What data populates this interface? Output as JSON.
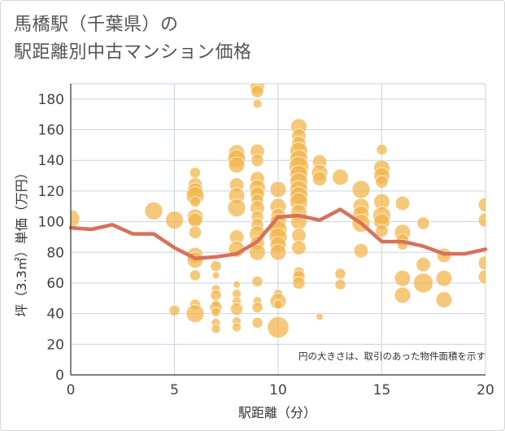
{
  "title_line1": "馬橋駅（千葉県）の",
  "title_line2": "駅距離別中古マンション価格",
  "chart_data": {
    "type": "scatter",
    "xlabel": "駅距離（分）",
    "ylabel": "坪（3.3㎡）単価（万円）",
    "xlim": [
      0,
      20
    ],
    "ylim": [
      0,
      190
    ],
    "x_ticks": [
      0,
      5,
      10,
      15,
      20
    ],
    "y_ticks": [
      0,
      20,
      40,
      60,
      80,
      100,
      120,
      140,
      160,
      180
    ],
    "grid": true,
    "note": "円の大きさは、取引のあった物件面積を示す",
    "colors": {
      "bubble": "#f2b54e",
      "line": "#d9705a",
      "grid": "#c7d3e6"
    },
    "bubbles": [
      [
        0,
        102,
        1.0
      ],
      [
        4,
        107,
        1.0
      ],
      [
        5,
        101,
        1.0
      ],
      [
        5,
        42,
        0.6
      ],
      [
        6,
        132,
        0.6
      ],
      [
        6,
        124,
        0.8
      ],
      [
        6,
        120,
        0.9
      ],
      [
        6,
        117,
        1.0
      ],
      [
        6,
        113,
        0.6
      ],
      [
        6,
        103,
        0.9
      ],
      [
        6,
        101,
        0.8
      ],
      [
        6,
        93,
        0.7
      ],
      [
        6,
        78,
        0.9
      ],
      [
        6,
        75,
        0.9
      ],
      [
        6,
        65,
        0.6
      ],
      [
        6,
        46,
        0.6
      ],
      [
        6,
        40,
        1.0
      ],
      [
        7,
        71,
        0.6
      ],
      [
        7,
        65,
        0.4
      ],
      [
        7,
        56,
        0.5
      ],
      [
        7,
        52,
        0.6
      ],
      [
        7,
        47,
        0.4
      ],
      [
        7,
        44,
        0.7
      ],
      [
        7,
        41,
        0.5
      ],
      [
        7,
        34,
        0.5
      ],
      [
        7,
        30,
        0.5
      ],
      [
        8,
        145,
        0.9
      ],
      [
        8,
        141,
        1.0
      ],
      [
        8,
        137,
        0.9
      ],
      [
        8,
        124,
        0.8
      ],
      [
        8,
        117,
        0.9
      ],
      [
        8,
        109,
        1.0
      ],
      [
        8,
        90,
        0.8
      ],
      [
        8,
        82,
        0.9
      ],
      [
        8,
        59,
        0.4
      ],
      [
        8,
        53,
        0.5
      ],
      [
        8,
        48,
        0.5
      ],
      [
        8,
        43,
        0.7
      ],
      [
        8,
        35,
        0.5
      ],
      [
        8,
        31,
        0.5
      ],
      [
        9,
        188,
        0.8
      ],
      [
        9,
        185,
        0.7
      ],
      [
        9,
        177,
        0.5
      ],
      [
        9,
        146,
        0.8
      ],
      [
        9,
        140,
        0.7
      ],
      [
        9,
        128,
        0.8
      ],
      [
        9,
        122,
        0.9
      ],
      [
        9,
        118,
        0.8
      ],
      [
        9,
        114,
        0.7
      ],
      [
        9,
        109,
        0.8
      ],
      [
        9,
        103,
        0.7
      ],
      [
        9,
        98,
        0.7
      ],
      [
        9,
        92,
        0.9
      ],
      [
        9,
        86,
        0.8
      ],
      [
        9,
        80,
        0.9
      ],
      [
        9,
        61,
        0.6
      ],
      [
        9,
        48,
        0.5
      ],
      [
        9,
        44,
        0.6
      ],
      [
        9,
        34,
        0.6
      ],
      [
        10,
        121,
        0.9
      ],
      [
        10,
        110,
        0.9
      ],
      [
        10,
        104,
        0.8
      ],
      [
        10,
        100,
        0.9
      ],
      [
        10,
        95,
        1.0
      ],
      [
        10,
        90,
        1.0
      ],
      [
        10,
        85,
        0.9
      ],
      [
        10,
        80,
        0.9
      ],
      [
        10,
        53,
        0.5
      ],
      [
        10,
        48,
        0.9
      ],
      [
        10,
        46,
        0.5
      ],
      [
        10,
        31,
        1.2
      ],
      [
        11,
        162,
        0.9
      ],
      [
        11,
        156,
        0.8
      ],
      [
        11,
        151,
        0.8
      ],
      [
        11,
        146,
        1.0
      ],
      [
        11,
        141,
        1.0
      ],
      [
        11,
        136,
        1.1
      ],
      [
        11,
        131,
        1.0
      ],
      [
        11,
        126,
        1.0
      ],
      [
        11,
        121,
        1.0
      ],
      [
        11,
        117,
        1.0
      ],
      [
        11,
        113,
        1.0
      ],
      [
        11,
        106,
        0.9
      ],
      [
        11,
        100,
        0.9
      ],
      [
        11,
        91,
        0.8
      ],
      [
        11,
        83,
        0.8
      ],
      [
        11,
        67,
        0.6
      ],
      [
        11,
        64,
        0.7
      ],
      [
        11,
        60,
        0.7
      ],
      [
        12,
        139,
        0.8
      ],
      [
        12,
        132,
        0.9
      ],
      [
        12,
        128,
        0.8
      ],
      [
        12,
        38,
        0.4
      ],
      [
        13,
        129,
        0.9
      ],
      [
        13,
        66,
        0.6
      ],
      [
        13,
        59,
        0.6
      ],
      [
        14,
        121,
        1.0
      ],
      [
        14,
        110,
        0.9
      ],
      [
        14,
        105,
        0.9
      ],
      [
        14,
        99,
        1.0
      ],
      [
        14,
        81,
        0.8
      ],
      [
        15,
        147,
        0.6
      ],
      [
        15,
        135,
        0.9
      ],
      [
        15,
        130,
        0.9
      ],
      [
        15,
        126,
        0.7
      ],
      [
        15,
        113,
        0.9
      ],
      [
        15,
        104,
        1.0
      ],
      [
        15,
        100,
        0.9
      ],
      [
        15,
        94,
        0.7
      ],
      [
        16,
        112,
        0.8
      ],
      [
        16,
        93,
        0.9
      ],
      [
        16,
        88,
        0.7
      ],
      [
        16,
        85,
        0.6
      ],
      [
        16,
        63,
        0.9
      ],
      [
        16,
        52,
        0.9
      ],
      [
        17,
        99,
        0.7
      ],
      [
        17,
        72,
        0.8
      ],
      [
        17,
        60,
        1.1
      ],
      [
        18,
        78,
        0.8
      ],
      [
        18,
        63,
        0.9
      ],
      [
        18,
        49,
        0.9
      ],
      [
        20,
        111,
        0.8
      ],
      [
        20,
        101,
        0.8
      ],
      [
        20,
        73,
        0.8
      ],
      [
        20,
        64,
        0.8
      ]
    ],
    "line": {
      "x": [
        0,
        1,
        2,
        3,
        4,
        5,
        6,
        7,
        8,
        9,
        10,
        11,
        12,
        13,
        14,
        15,
        16,
        17,
        18,
        19,
        20
      ],
      "y": [
        96,
        95,
        98,
        92,
        92,
        83,
        76,
        77,
        79,
        87,
        103,
        104,
        101,
        108,
        99,
        87,
        87,
        84,
        79,
        79,
        82
      ]
    }
  }
}
